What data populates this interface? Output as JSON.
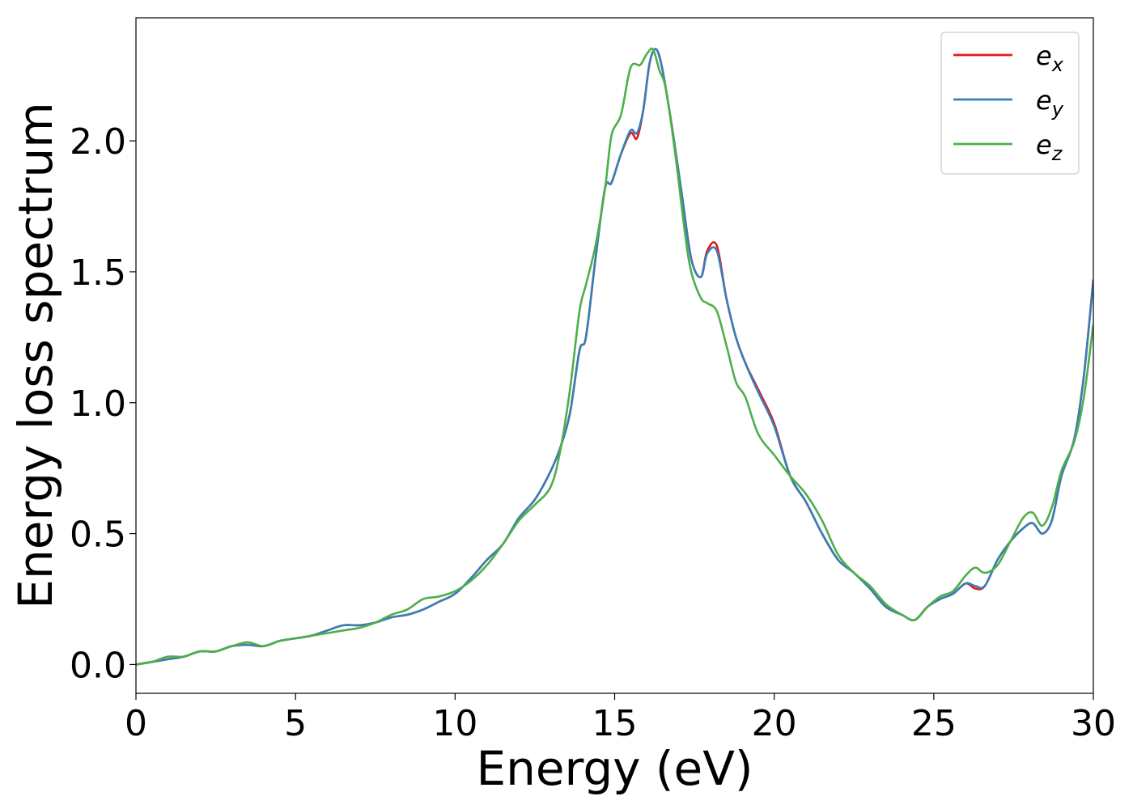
{
  "chart_data": {
    "type": "line",
    "title": "",
    "xlabel": "Energy (eV)",
    "ylabel": "Energy loss spectrum",
    "xlim": [
      0,
      30
    ],
    "ylim": [
      -0.11,
      2.47
    ],
    "xticks": [
      0,
      5,
      10,
      15,
      20,
      25,
      30
    ],
    "xtick_labels": [
      "0",
      "5",
      "10",
      "15",
      "20",
      "25",
      "30"
    ],
    "yticks": [
      0.0,
      0.5,
      1.0,
      1.5,
      2.0
    ],
    "ytick_labels": [
      "0.0",
      "0.5",
      "1.0",
      "1.5",
      "2.0"
    ],
    "grid": false,
    "legend_position": "top-right",
    "series": [
      {
        "name_base": "e",
        "name_sub": "x",
        "color": "#e41a1c",
        "x": [
          0,
          0.5,
          1,
          1.5,
          2,
          2.5,
          3,
          3.5,
          4,
          4.5,
          5,
          5.5,
          6,
          6.5,
          7,
          7.5,
          8,
          8.5,
          9,
          9.5,
          10,
          10.5,
          11,
          11.5,
          12,
          12.5,
          13,
          13.3,
          13.6,
          13.9,
          14.1,
          14.4,
          14.7,
          14.9,
          15.2,
          15.5,
          15.7,
          15.9,
          16.1,
          16.3,
          16.5,
          16.8,
          17.1,
          17.4,
          17.7,
          17.9,
          18.2,
          18.5,
          18.8,
          19.1,
          19.5,
          20,
          20.5,
          21,
          21.5,
          22,
          22.5,
          23,
          23.5,
          24,
          24.4,
          24.8,
          25.2,
          25.6,
          26,
          26.3,
          26.6,
          27,
          27.4,
          27.8,
          28.1,
          28.4,
          28.7,
          29,
          29.4,
          29.7,
          30
        ],
        "y": [
          0,
          0.01,
          0.02,
          0.03,
          0.05,
          0.05,
          0.07,
          0.075,
          0.07,
          0.09,
          0.1,
          0.11,
          0.13,
          0.15,
          0.15,
          0.16,
          0.18,
          0.19,
          0.21,
          0.24,
          0.27,
          0.33,
          0.4,
          0.46,
          0.56,
          0.63,
          0.74,
          0.83,
          0.96,
          1.2,
          1.25,
          1.55,
          1.82,
          1.84,
          1.95,
          2.03,
          2.01,
          2.12,
          2.3,
          2.35,
          2.27,
          2.05,
          1.8,
          1.55,
          1.48,
          1.58,
          1.6,
          1.4,
          1.25,
          1.15,
          1.05,
          0.92,
          0.72,
          0.62,
          0.5,
          0.4,
          0.35,
          0.29,
          0.22,
          0.19,
          0.17,
          0.22,
          0.25,
          0.27,
          0.31,
          0.29,
          0.3,
          0.4,
          0.47,
          0.52,
          0.54,
          0.5,
          0.55,
          0.72,
          0.86,
          1.1,
          1.47
        ]
      },
      {
        "name_base": "e",
        "name_sub": "y",
        "color": "#377eb8",
        "x": [
          0,
          0.5,
          1,
          1.5,
          2,
          2.5,
          3,
          3.5,
          4,
          4.5,
          5,
          5.5,
          6,
          6.5,
          7,
          7.5,
          8,
          8.5,
          9,
          9.5,
          10,
          10.5,
          11,
          11.5,
          12,
          12.5,
          13,
          13.3,
          13.6,
          13.9,
          14.1,
          14.4,
          14.7,
          14.9,
          15.2,
          15.5,
          15.7,
          15.9,
          16.1,
          16.3,
          16.5,
          16.8,
          17.1,
          17.4,
          17.7,
          17.9,
          18.2,
          18.5,
          18.8,
          19.1,
          19.5,
          20,
          20.5,
          21,
          21.5,
          22,
          22.5,
          23,
          23.5,
          24,
          24.4,
          24.8,
          25.2,
          25.6,
          26,
          26.3,
          26.6,
          27,
          27.4,
          27.8,
          28.1,
          28.4,
          28.7,
          29,
          29.4,
          29.7,
          30
        ],
        "y": [
          0,
          0.01,
          0.02,
          0.03,
          0.05,
          0.05,
          0.07,
          0.075,
          0.07,
          0.09,
          0.1,
          0.11,
          0.13,
          0.15,
          0.15,
          0.16,
          0.18,
          0.19,
          0.21,
          0.24,
          0.27,
          0.33,
          0.4,
          0.46,
          0.56,
          0.63,
          0.74,
          0.83,
          0.96,
          1.2,
          1.25,
          1.55,
          1.82,
          1.84,
          1.95,
          2.04,
          2.03,
          2.12,
          2.3,
          2.35,
          2.27,
          2.05,
          1.8,
          1.55,
          1.48,
          1.57,
          1.58,
          1.4,
          1.25,
          1.15,
          1.04,
          0.91,
          0.72,
          0.62,
          0.5,
          0.4,
          0.35,
          0.29,
          0.22,
          0.19,
          0.17,
          0.22,
          0.25,
          0.27,
          0.31,
          0.3,
          0.3,
          0.4,
          0.47,
          0.52,
          0.54,
          0.5,
          0.55,
          0.72,
          0.86,
          1.1,
          1.47
        ]
      },
      {
        "name_base": "e",
        "name_sub": "z",
        "color": "#4daf4a",
        "x": [
          0,
          0.5,
          1,
          1.5,
          2,
          2.5,
          3,
          3.5,
          4,
          4.5,
          5,
          5.5,
          6,
          6.5,
          7,
          7.5,
          8,
          8.5,
          9,
          9.5,
          10,
          10.5,
          11,
          11.5,
          12,
          12.5,
          13,
          13.3,
          13.6,
          13.9,
          14.1,
          14.4,
          14.7,
          14.9,
          15.2,
          15.5,
          15.8,
          16,
          16.2,
          16.4,
          16.6,
          16.9,
          17.2,
          17.4,
          17.7,
          17.9,
          18.2,
          18.5,
          18.8,
          19.1,
          19.5,
          20,
          20.5,
          21,
          21.5,
          22,
          22.5,
          23,
          23.5,
          24,
          24.4,
          24.8,
          25.2,
          25.6,
          26,
          26.3,
          26.6,
          27,
          27.4,
          27.8,
          28.1,
          28.4,
          28.7,
          29,
          29.4,
          29.7,
          30
        ],
        "y": [
          0,
          0.01,
          0.03,
          0.03,
          0.05,
          0.05,
          0.07,
          0.085,
          0.07,
          0.09,
          0.1,
          0.11,
          0.12,
          0.13,
          0.14,
          0.16,
          0.19,
          0.21,
          0.25,
          0.26,
          0.28,
          0.32,
          0.38,
          0.46,
          0.55,
          0.61,
          0.68,
          0.82,
          1.05,
          1.35,
          1.45,
          1.6,
          1.82,
          2.02,
          2.1,
          2.28,
          2.29,
          2.33,
          2.35,
          2.27,
          2.2,
          1.95,
          1.65,
          1.5,
          1.4,
          1.38,
          1.35,
          1.22,
          1.08,
          1.02,
          0.88,
          0.8,
          0.72,
          0.65,
          0.55,
          0.42,
          0.35,
          0.3,
          0.23,
          0.19,
          0.17,
          0.22,
          0.26,
          0.28,
          0.34,
          0.37,
          0.35,
          0.38,
          0.47,
          0.56,
          0.58,
          0.53,
          0.6,
          0.74,
          0.85,
          1.02,
          1.3
        ]
      }
    ]
  }
}
